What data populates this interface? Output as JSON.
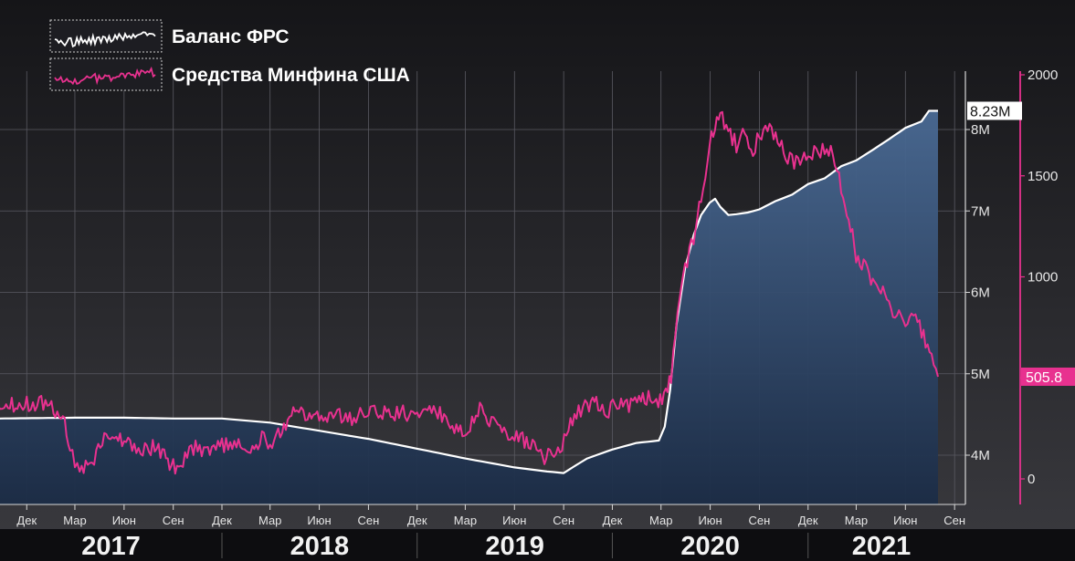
{
  "legend": {
    "items": [
      {
        "label": "Баланс ФРС",
        "color": "#ffffff"
      },
      {
        "label": "Средства Минфина США",
        "color": "#e8318f"
      }
    ]
  },
  "colors": {
    "background_top": "#151518",
    "background_bottom": "#3a3a3f",
    "area_fill_top": "#4a6a94",
    "area_fill_bottom": "#1b2c46",
    "fed_line": "#ffffff",
    "tga_line": "#e8318f",
    "grid": "#5a5a62",
    "axis_text": "#e6e6e6",
    "year_band": "#0d0d10"
  },
  "chart_data": {
    "type": "line",
    "x_unit": "month",
    "x_start": "2016-10",
    "x_end": "2021-09",
    "month_ticks": [
      {
        "label": "Дек",
        "date": "2016-12"
      },
      {
        "label": "Мар",
        "date": "2017-03"
      },
      {
        "label": "Июн",
        "date": "2017-06"
      },
      {
        "label": "Сен",
        "date": "2017-09"
      },
      {
        "label": "Дек",
        "date": "2017-12"
      },
      {
        "label": "Мар",
        "date": "2018-03"
      },
      {
        "label": "Июн",
        "date": "2018-06"
      },
      {
        "label": "Сен",
        "date": "2018-09"
      },
      {
        "label": "Дек",
        "date": "2018-12"
      },
      {
        "label": "Мар",
        "date": "2019-03"
      },
      {
        "label": "Июн",
        "date": "2019-06"
      },
      {
        "label": "Сен",
        "date": "2019-09"
      },
      {
        "label": "Дек",
        "date": "2019-12"
      },
      {
        "label": "Мар",
        "date": "2020-03"
      },
      {
        "label": "Июн",
        "date": "2020-06"
      },
      {
        "label": "Сен",
        "date": "2020-09"
      },
      {
        "label": "Дек",
        "date": "2020-12"
      },
      {
        "label": "Мар",
        "date": "2021-03"
      },
      {
        "label": "Июн",
        "date": "2021-06"
      },
      {
        "label": "Сен",
        "date": "2021-09"
      }
    ],
    "year_labels": [
      {
        "label": "2017",
        "from": "2016-10",
        "to": "2017-12"
      },
      {
        "label": "2018",
        "from": "2017-12",
        "to": "2018-12"
      },
      {
        "label": "2019",
        "from": "2018-12",
        "to": "2019-12"
      },
      {
        "label": "2020",
        "from": "2019-12",
        "to": "2020-12"
      },
      {
        "label": "2021",
        "from": "2020-12",
        "to": "2021-09"
      }
    ],
    "left_axis": {
      "min": 3.4,
      "max": 8.6,
      "ticks": [
        {
          "v": 4,
          "label": "4M"
        },
        {
          "v": 5,
          "label": "5M"
        },
        {
          "v": 6,
          "label": "6M"
        },
        {
          "v": 7,
          "label": "7M"
        },
        {
          "v": 8,
          "label": "8M"
        }
      ]
    },
    "right_axis": {
      "min": -140,
      "max": 2000,
      "ticks": [
        {
          "v": 0,
          "label": "0"
        },
        {
          "v": 500,
          "label": "500"
        },
        {
          "v": 1000,
          "label": "1000"
        },
        {
          "v": 1500,
          "label": "1500"
        },
        {
          "v": 2000,
          "label": "2000"
        }
      ]
    },
    "series": [
      {
        "name": "Баланс ФРС",
        "axis": "left",
        "last_value_label": "8.23M",
        "points": [
          [
            "2016-10-01",
            4.45
          ],
          [
            "2017-03-01",
            4.46
          ],
          [
            "2017-06-01",
            4.46
          ],
          [
            "2017-09-01",
            4.45
          ],
          [
            "2017-12-01",
            4.45
          ],
          [
            "2018-03-01",
            4.4
          ],
          [
            "2018-06-01",
            4.3
          ],
          [
            "2018-09-01",
            4.2
          ],
          [
            "2018-12-01",
            4.08
          ],
          [
            "2019-03-01",
            3.96
          ],
          [
            "2019-06-01",
            3.85
          ],
          [
            "2019-08-01",
            3.8
          ],
          [
            "2019-09-01",
            3.78
          ],
          [
            "2019-09-20",
            3.86
          ],
          [
            "2019-10-15",
            3.96
          ],
          [
            "2019-12-01",
            4.07
          ],
          [
            "2020-01-15",
            4.15
          ],
          [
            "2020-02-26",
            4.18
          ],
          [
            "2020-03-08",
            4.35
          ],
          [
            "2020-03-18",
            4.8
          ],
          [
            "2020-03-30",
            5.6
          ],
          [
            "2020-04-15",
            6.3
          ],
          [
            "2020-05-01",
            6.7
          ],
          [
            "2020-05-15",
            6.95
          ],
          [
            "2020-05-31",
            7.1
          ],
          [
            "2020-06-10",
            7.15
          ],
          [
            "2020-06-20",
            7.05
          ],
          [
            "2020-07-05",
            6.95
          ],
          [
            "2020-07-20",
            6.96
          ],
          [
            "2020-08-10",
            6.98
          ],
          [
            "2020-09-01",
            7.02
          ],
          [
            "2020-10-01",
            7.12
          ],
          [
            "2020-11-01",
            7.2
          ],
          [
            "2020-12-01",
            7.33
          ],
          [
            "2021-01-01",
            7.4
          ],
          [
            "2021-02-01",
            7.55
          ],
          [
            "2021-03-01",
            7.62
          ],
          [
            "2021-04-01",
            7.75
          ],
          [
            "2021-05-01",
            7.88
          ],
          [
            "2021-06-01",
            8.02
          ],
          [
            "2021-07-01",
            8.1
          ],
          [
            "2021-07-15",
            8.23
          ],
          [
            "2021-08-01",
            8.23
          ]
        ]
      },
      {
        "name": "Средства Минфина США",
        "axis": "right",
        "last_value_label": "505.8",
        "points": [
          [
            "2016-10-01",
            390
          ],
          [
            "2016-10-20",
            380
          ],
          [
            "2016-11-10",
            370
          ],
          [
            "2016-12-01",
            375
          ],
          [
            "2017-01-01",
            370
          ],
          [
            "2017-01-20",
            350
          ],
          [
            "2017-02-10",
            280
          ],
          [
            "2017-02-20",
            160
          ],
          [
            "2017-03-01",
            80
          ],
          [
            "2017-03-10",
            60
          ],
          [
            "2017-03-25",
            70
          ],
          [
            "2017-04-10",
            120
          ],
          [
            "2017-04-25",
            200
          ],
          [
            "2017-05-10",
            230
          ],
          [
            "2017-06-01",
            180
          ],
          [
            "2017-06-20",
            175
          ],
          [
            "2017-07-10",
            140
          ],
          [
            "2017-08-01",
            160
          ],
          [
            "2017-08-15",
            120
          ],
          [
            "2017-09-01",
            60
          ],
          [
            "2017-09-15",
            80
          ],
          [
            "2017-10-01",
            160
          ],
          [
            "2017-11-01",
            150
          ],
          [
            "2017-12-01",
            170
          ],
          [
            "2018-01-01",
            160
          ],
          [
            "2018-01-20",
            100
          ],
          [
            "2018-02-10",
            200
          ],
          [
            "2018-03-01",
            180
          ],
          [
            "2018-03-20",
            240
          ],
          [
            "2018-04-10",
            300
          ],
          [
            "2018-04-20",
            350
          ],
          [
            "2018-05-10",
            290
          ],
          [
            "2018-06-01",
            300
          ],
          [
            "2018-07-01",
            320
          ],
          [
            "2018-08-01",
            300
          ],
          [
            "2018-09-01",
            340
          ],
          [
            "2018-10-01",
            320
          ],
          [
            "2018-11-01",
            330
          ],
          [
            "2018-12-01",
            320
          ],
          [
            "2019-01-01",
            340
          ],
          [
            "2019-02-01",
            280
          ],
          [
            "2019-02-20",
            230
          ],
          [
            "2019-03-10",
            260
          ],
          [
            "2019-04-01",
            360
          ],
          [
            "2019-04-15",
            300
          ],
          [
            "2019-05-01",
            230
          ],
          [
            "2019-06-01",
            220
          ],
          [
            "2019-07-01",
            170
          ],
          [
            "2019-07-20",
            110
          ],
          [
            "2019-08-10",
            120
          ],
          [
            "2019-08-25",
            130
          ],
          [
            "2019-09-10",
            260
          ],
          [
            "2019-09-25",
            320
          ],
          [
            "2019-10-15",
            360
          ],
          [
            "2019-11-01",
            370
          ],
          [
            "2019-11-20",
            330
          ],
          [
            "2019-12-10",
            380
          ],
          [
            "2020-01-01",
            360
          ],
          [
            "2020-01-20",
            390
          ],
          [
            "2020-02-10",
            400
          ],
          [
            "2020-02-25",
            380
          ],
          [
            "2020-03-10",
            410
          ],
          [
            "2020-03-20",
            500
          ],
          [
            "2020-04-01",
            850
          ],
          [
            "2020-04-15",
            1050
          ],
          [
            "2020-05-01",
            1200
          ],
          [
            "2020-05-15",
            1400
          ],
          [
            "2020-05-31",
            1650
          ],
          [
            "2020-06-10",
            1750
          ],
          [
            "2020-06-20",
            1800
          ],
          [
            "2020-07-01",
            1750
          ],
          [
            "2020-07-20",
            1650
          ],
          [
            "2020-08-01",
            1700
          ],
          [
            "2020-08-20",
            1620
          ],
          [
            "2020-09-01",
            1700
          ],
          [
            "2020-09-20",
            1720
          ],
          [
            "2020-10-05",
            1680
          ],
          [
            "2020-10-20",
            1600
          ],
          [
            "2020-11-05",
            1560
          ],
          [
            "2020-11-20",
            1560
          ],
          [
            "2020-12-05",
            1620
          ],
          [
            "2020-12-20",
            1600
          ],
          [
            "2021-01-05",
            1650
          ],
          [
            "2021-01-20",
            1580
          ],
          [
            "2021-02-01",
            1450
          ],
          [
            "2021-02-15",
            1300
          ],
          [
            "2021-03-01",
            1100
          ],
          [
            "2021-03-15",
            1050
          ],
          [
            "2021-04-01",
            980
          ],
          [
            "2021-04-20",
            950
          ],
          [
            "2021-05-05",
            850
          ],
          [
            "2021-05-20",
            810
          ],
          [
            "2021-06-05",
            780
          ],
          [
            "2021-06-20",
            820
          ],
          [
            "2021-07-05",
            700
          ],
          [
            "2021-07-20",
            620
          ],
          [
            "2021-08-01",
            505.8
          ]
        ]
      }
    ]
  }
}
